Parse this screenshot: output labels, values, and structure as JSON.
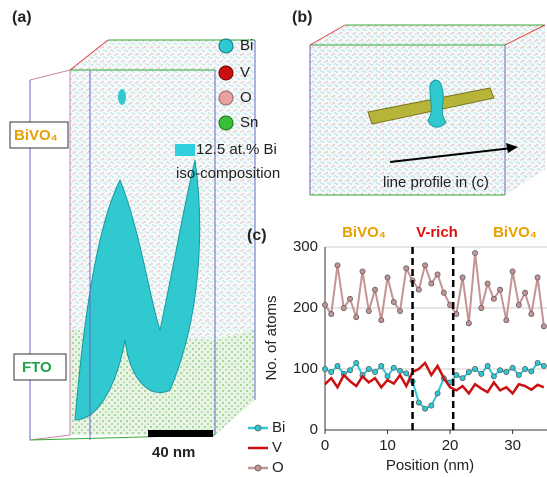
{
  "panel_a": {
    "label": "(a)",
    "legend": [
      "Bi",
      "V",
      "O",
      "Sn"
    ],
    "iso_value": "12.5 at.% Bi",
    "iso_text": "iso-composition",
    "top_label": "BiVO₄",
    "bottom_label": "FTO",
    "scale_bar": "40 nm"
  },
  "panel_b": {
    "label": "(b)",
    "arrow_label": "line profile in (c)"
  },
  "chart_data": {
    "type": "line",
    "panel_label": "(c)",
    "annotations": [
      "BiVO₄",
      "V-rich",
      "BiVO₄"
    ],
    "xlabel": "Position (nm)",
    "ylabel": "No. of atoms",
    "x": [
      0,
      1,
      2,
      3,
      4,
      5,
      6,
      7,
      8,
      9,
      10,
      11,
      12,
      13,
      14,
      15,
      16,
      17,
      18,
      19,
      20,
      21,
      22,
      23,
      24,
      25,
      26,
      27,
      28,
      29,
      30,
      31,
      32,
      33,
      34,
      35
    ],
    "series": [
      {
        "name": "Bi",
        "color": "#2ec8d4",
        "values": [
          100,
          95,
          105,
          92,
          98,
          110,
          90,
          100,
          95,
          105,
          88,
          102,
          97,
          93,
          80,
          45,
          35,
          40,
          60,
          85,
          78,
          90,
          85,
          95,
          100,
          92,
          105,
          88,
          98,
          95,
          102,
          90,
          100,
          96,
          110,
          105
        ]
      },
      {
        "name": "V",
        "color": "#cc1010",
        "values": [
          75,
          85,
          70,
          90,
          80,
          72,
          88,
          78,
          85,
          70,
          82,
          76,
          90,
          72,
          95,
          100,
          110,
          90,
          105,
          85,
          70,
          65,
          72,
          60,
          75,
          68,
          62,
          78,
          65,
          70,
          60,
          75,
          72,
          66,
          74,
          70
        ]
      },
      {
        "name": "O",
        "color": "#c49494",
        "values": [
          205,
          190,
          270,
          200,
          215,
          185,
          260,
          195,
          230,
          180,
          250,
          210,
          195,
          265,
          245,
          230,
          270,
          240,
          255,
          225,
          205,
          190,
          250,
          175,
          290,
          200,
          240,
          215,
          230,
          180,
          260,
          205,
          225,
          190,
          250,
          170
        ]
      }
    ],
    "dividers": [
      14,
      20.5
    ],
    "xlim": [
      0,
      35.5
    ],
    "ylim": [
      0,
      300
    ],
    "xticks": [
      0,
      10,
      20,
      30
    ],
    "yticks": [
      0,
      100,
      200,
      300
    ],
    "grid": true
  }
}
